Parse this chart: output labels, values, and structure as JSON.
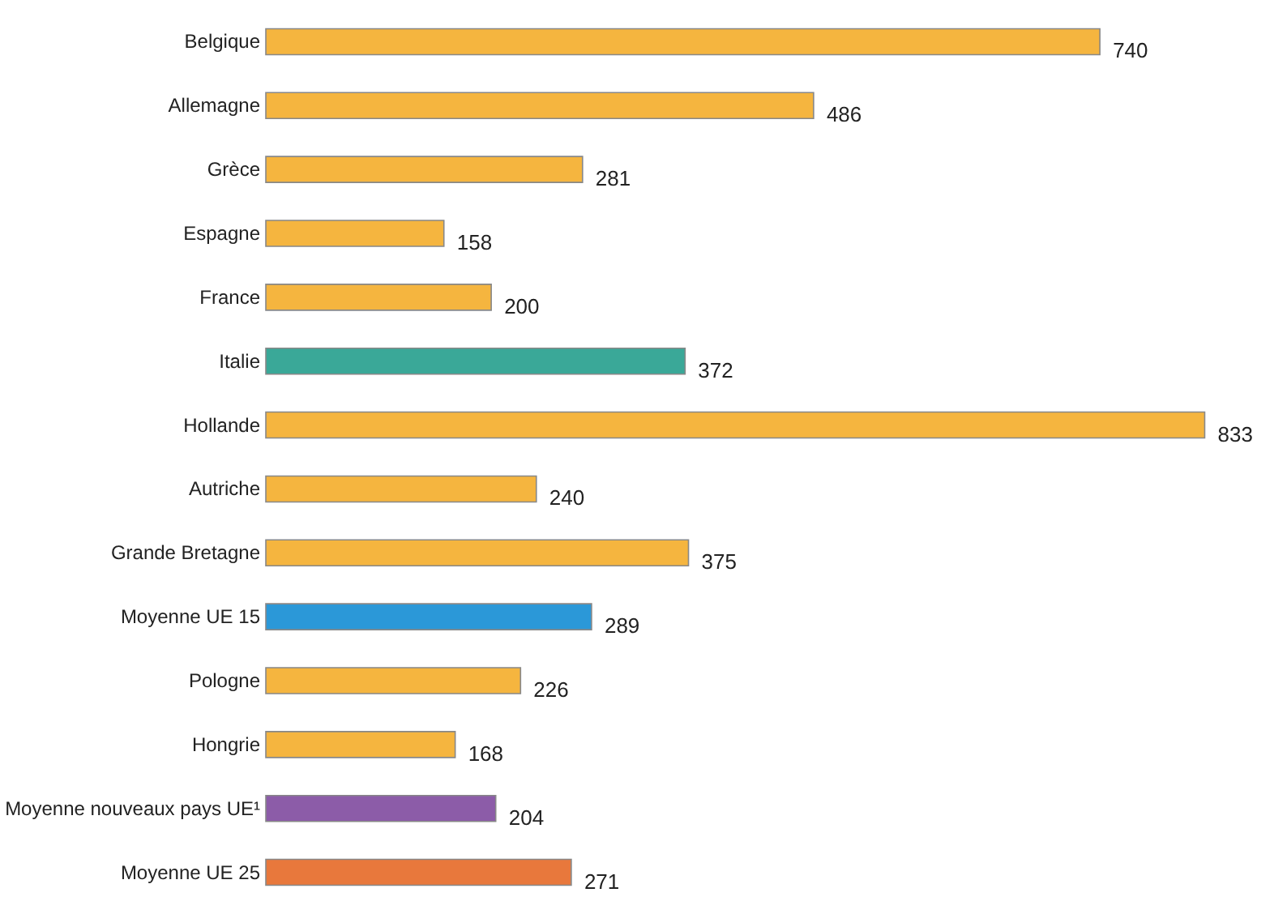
{
  "chart_data": {
    "type": "bar",
    "orientation": "horizontal",
    "data_labels": true,
    "grid": false,
    "categories": [
      "Belgique",
      "Allemagne",
      "Grèce",
      "Espagne",
      "France",
      "Italie",
      "Hollande",
      "Autriche",
      "Grande Bretagne",
      "Moyenne UE 15",
      "Pologne",
      "Hongrie",
      "Moyenne nouveaux pays UE¹",
      "Moyenne UE 25"
    ],
    "values": [
      740,
      486,
      281,
      158,
      200,
      372,
      833,
      240,
      375,
      289,
      226,
      168,
      204,
      271
    ],
    "colors": [
      "#f5b53f",
      "#f5b53f",
      "#f5b53f",
      "#f5b53f",
      "#f5b53f",
      "#3aa898",
      "#f5b53f",
      "#f5b53f",
      "#f5b53f",
      "#2b98d8",
      "#f5b53f",
      "#f5b53f",
      "#8c5ca8",
      "#e8783c"
    ]
  }
}
